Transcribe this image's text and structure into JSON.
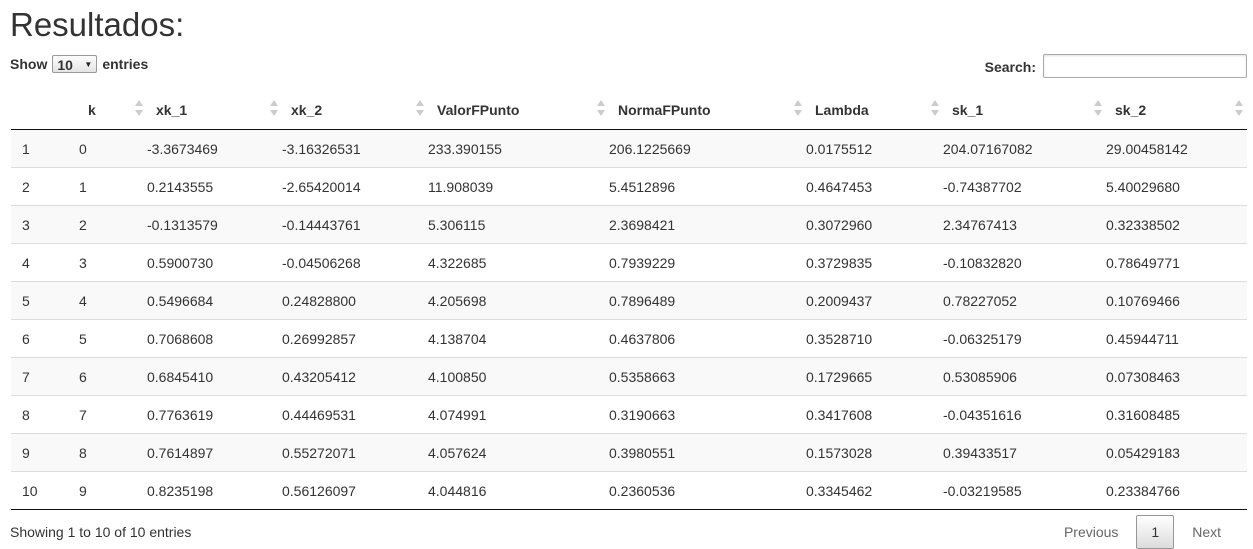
{
  "title": "Resultados:",
  "length_control": {
    "show_label": "Show",
    "selected": "10",
    "entries_label": "entries"
  },
  "search": {
    "label": "Search:",
    "value": ""
  },
  "table": {
    "columns": [
      "",
      "k",
      "xk_1",
      "xk_2",
      "ValorFPunto",
      "NormaFPunto",
      "Lambda",
      "sk_1",
      "sk_2"
    ],
    "rows": [
      [
        "1",
        "0",
        "-3.3673469",
        "-3.16326531",
        "233.390155",
        "206.1225669",
        "0.0175512",
        "204.07167082",
        "29.00458142"
      ],
      [
        "2",
        "1",
        "0.2143555",
        "-2.65420014",
        "11.908039",
        "5.4512896",
        "0.4647453",
        "-0.74387702",
        "5.40029680"
      ],
      [
        "3",
        "2",
        "-0.1313579",
        "-0.14443761",
        "5.306115",
        "2.3698421",
        "0.3072960",
        "2.34767413",
        "0.32338502"
      ],
      [
        "4",
        "3",
        "0.5900730",
        "-0.04506268",
        "4.322685",
        "0.7939229",
        "0.3729835",
        "-0.10832820",
        "0.78649771"
      ],
      [
        "5",
        "4",
        "0.5496684",
        "0.24828800",
        "4.205698",
        "0.7896489",
        "0.2009437",
        "0.78227052",
        "0.10769466"
      ],
      [
        "6",
        "5",
        "0.7068608",
        "0.26992857",
        "4.138704",
        "0.4637806",
        "0.3528710",
        "-0.06325179",
        "0.45944711"
      ],
      [
        "7",
        "6",
        "0.6845410",
        "0.43205412",
        "4.100850",
        "0.5358663",
        "0.1729665",
        "0.53085906",
        "0.07308463"
      ],
      [
        "8",
        "7",
        "0.7763619",
        "0.44469531",
        "4.074991",
        "0.3190663",
        "0.3417608",
        "-0.04351616",
        "0.31608485"
      ],
      [
        "9",
        "8",
        "0.7614897",
        "0.55272071",
        "4.057624",
        "0.3980551",
        "0.1573028",
        "0.39433517",
        "0.05429183"
      ],
      [
        "10",
        "9",
        "0.8235198",
        "0.56126097",
        "4.044816",
        "0.2360536",
        "0.3345462",
        "-0.03219585",
        "0.23384766"
      ]
    ]
  },
  "footer": {
    "info": "Showing 1 to 10 of 10 entries",
    "previous": "Previous",
    "current_page": "1",
    "next": "Next"
  }
}
